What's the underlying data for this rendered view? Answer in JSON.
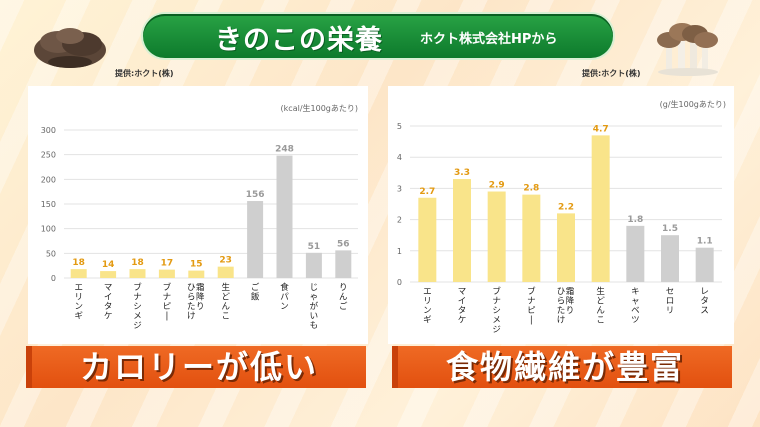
{
  "header": {
    "title": "きのこの栄養",
    "source": "ホクト株式会社HPから"
  },
  "credits": {
    "left": "提供:ホクト(株)",
    "right": "提供:ホクト(株)"
  },
  "captions": {
    "left": "カロリーが低い",
    "right": "食物繊維が豊富"
  },
  "colors": {
    "highlight_bar": "#f9e48a",
    "highlight_label": "#e39a12",
    "gray_bar": "#cfcfcf",
    "gray_label": "#9a9a9a",
    "banner_green": "#1c8f3a",
    "caption_orange": "#e85a18"
  },
  "chart_data": [
    {
      "type": "bar",
      "unit_label": "(kcal/生100gあたり)",
      "categories": [
        "エリンギ",
        "マイタケ",
        "ブナシメジ",
        "ブナピー",
        "霜降りひらたけ",
        "生どんこ",
        "ご飯",
        "食パン",
        "じゃがいも",
        "りんご"
      ],
      "values": [
        18,
        14,
        18,
        17,
        15,
        23,
        156,
        248,
        51,
        56
      ],
      "highlight": [
        true,
        true,
        true,
        true,
        true,
        true,
        false,
        false,
        false,
        false
      ],
      "yticks": [
        0,
        50,
        100,
        150,
        200,
        250,
        300
      ],
      "ylim": [
        0,
        300
      ],
      "grid": true
    },
    {
      "type": "bar",
      "unit_label": "(g/生100gあたり)",
      "categories": [
        "エリンギ",
        "マイタケ",
        "ブナシメジ",
        "ブナピー",
        "霜降りひらたけ",
        "生どんこ",
        "キャベツ",
        "セロリ",
        "レタス"
      ],
      "values": [
        2.7,
        3.3,
        2.9,
        2.8,
        2.2,
        4.7,
        1.8,
        1.5,
        1.1
      ],
      "highlight": [
        true,
        true,
        true,
        true,
        true,
        true,
        false,
        false,
        false
      ],
      "yticks": [
        0,
        1,
        2,
        3,
        4,
        5
      ],
      "ylim": [
        0,
        5
      ],
      "grid": true
    }
  ]
}
